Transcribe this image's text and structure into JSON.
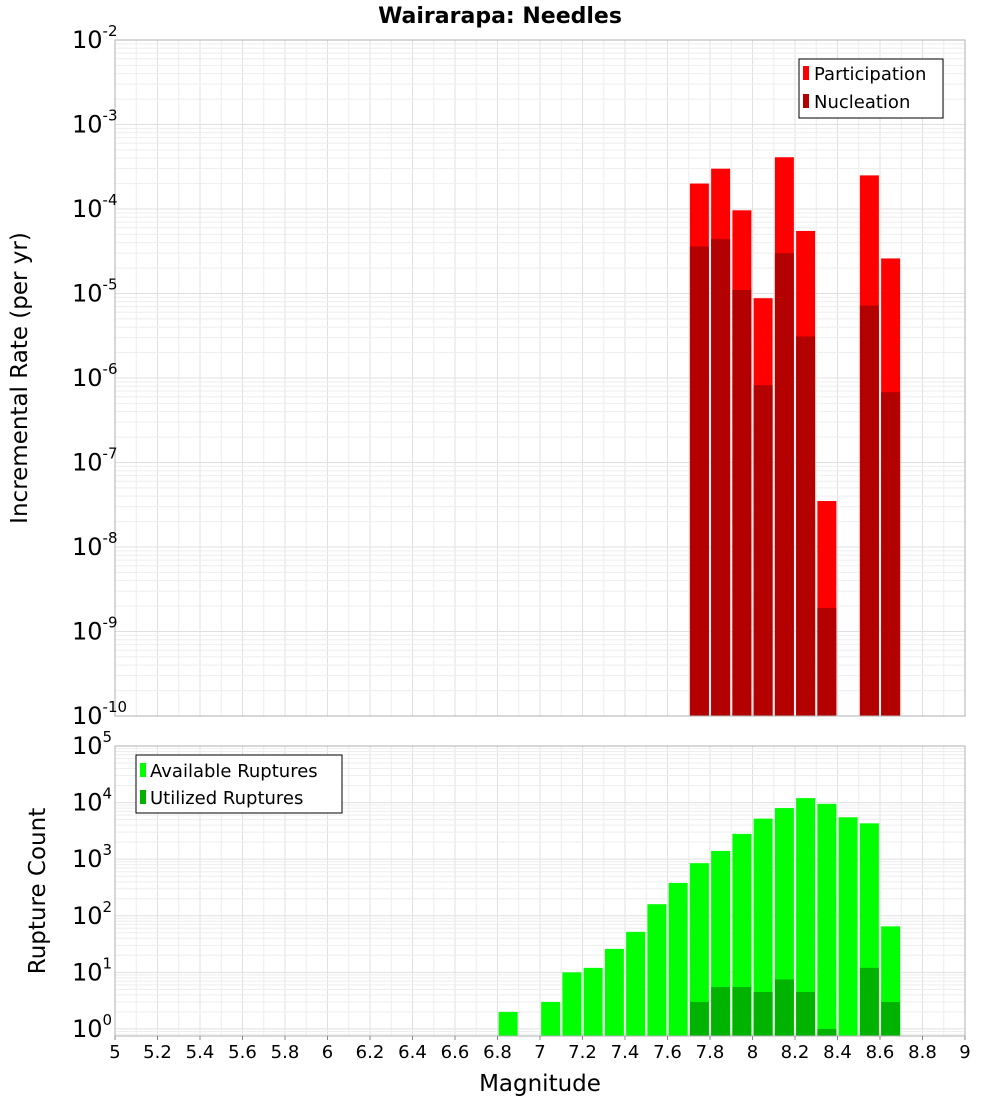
{
  "chart_data": [
    {
      "type": "bar",
      "title": "Wairarapa: Needles",
      "xlabel": "",
      "ylabel": "Incremental Rate (per yr)",
      "xlim": [
        5,
        9
      ],
      "ylim": [
        1e-10,
        0.01
      ],
      "yscale": "log",
      "grid": true,
      "legend_position": "top-right",
      "ytick_exponents": [
        "-10",
        "-9",
        "-8",
        "-7",
        "-6",
        "-5",
        "-4",
        "-3",
        "-2"
      ],
      "x": [
        7.75,
        7.85,
        7.95,
        8.05,
        8.15,
        8.25,
        8.35,
        8.45,
        8.55,
        8.65
      ],
      "series": [
        {
          "name": "Participation",
          "color": "#ff0000",
          "values": [
            0.0002,
            0.0003,
            9.65e-05,
            8.8e-06,
            0.00041,
            5.5e-05,
            3.5e-08,
            null,
            0.00025,
            2.6e-05
          ]
        },
        {
          "name": "Nucleation",
          "color": "#b30000",
          "values": [
            3.6e-05,
            4.4e-05,
            1.1e-05,
            8.2e-07,
            3e-05,
            3.1e-06,
            1.9e-09,
            null,
            7.2e-06,
            6.8e-07
          ]
        }
      ]
    },
    {
      "type": "bar",
      "xlabel": "Magnitude",
      "ylabel": "Rupture Count",
      "xlim": [
        5,
        9
      ],
      "ylim": [
        0.75,
        100000
      ],
      "yscale": "log",
      "grid": true,
      "legend_position": "top-left",
      "xticks": [
        "5",
        "5.2",
        "5.4",
        "5.6",
        "5.8",
        "6",
        "6.2",
        "6.4",
        "6.6",
        "6.8",
        "7",
        "7.2",
        "7.4",
        "7.6",
        "7.8",
        "8",
        "8.2",
        "8.4",
        "8.6",
        "8.8",
        "9"
      ],
      "ytick_exponents": [
        "0",
        "1",
        "2",
        "3",
        "4",
        "5"
      ],
      "x": [
        6.85,
        6.95,
        7.05,
        7.15,
        7.25,
        7.35,
        7.45,
        7.55,
        7.65,
        7.75,
        7.85,
        7.95,
        8.05,
        8.15,
        8.25,
        8.35,
        8.45,
        8.55,
        8.65
      ],
      "series": [
        {
          "name": "Available Ruptures",
          "color": "#00ff00",
          "values": [
            2,
            null,
            3,
            10,
            12,
            26,
            52,
            160,
            380,
            850,
            1400,
            2800,
            5200,
            8000,
            12000,
            9500,
            5500,
            4300,
            65
          ]
        },
        {
          "name": "Utilized Ruptures",
          "color": "#00b300",
          "values": [
            null,
            null,
            null,
            null,
            null,
            null,
            null,
            null,
            null,
            3,
            5.5,
            5.5,
            4.5,
            7.5,
            4.5,
            1,
            null,
            12,
            3
          ]
        }
      ]
    }
  ]
}
